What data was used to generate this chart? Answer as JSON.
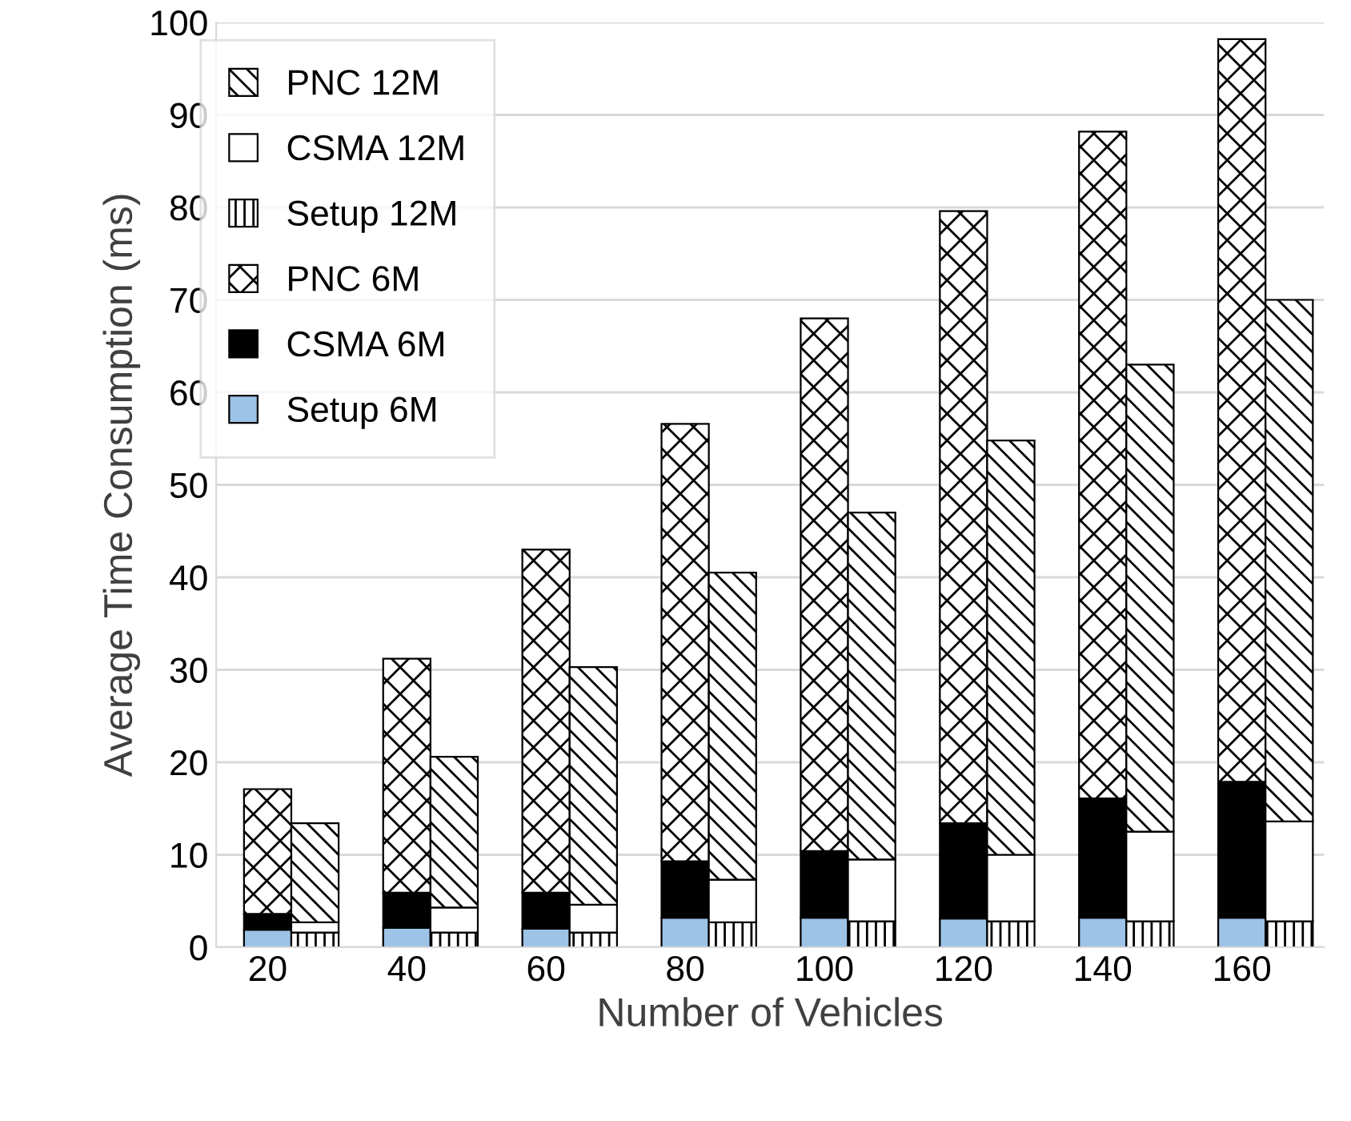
{
  "chart_data": {
    "type": "bar",
    "stacked": true,
    "xlabel": "Number of Vehicles",
    "ylabel": "Average Time Consumption (ms)",
    "categories": [
      "20",
      null,
      "40",
      null,
      "60",
      null,
      "80",
      null,
      "100",
      null,
      "120",
      null,
      "140",
      null,
      "160",
      null
    ],
    "ylim": [
      0,
      100
    ],
    "yticks": [
      0,
      10,
      20,
      30,
      40,
      50,
      60,
      70,
      80,
      90,
      100
    ],
    "grid": "y",
    "legend": "top left",
    "series": [
      {
        "name": "Setup 6M",
        "color": "#9dc3e6",
        "values": [
          1.9,
          null,
          2.1,
          null,
          2.0,
          null,
          3.2,
          null,
          3.2,
          null,
          3.1,
          null,
          3.2,
          null,
          3.2,
          null
        ]
      },
      {
        "name": "CSMA 6M",
        "color": "#000000",
        "values": [
          1.7,
          null,
          3.8,
          null,
          3.9,
          null,
          6.1,
          null,
          7.2,
          null,
          10.3,
          null,
          12.9,
          null,
          14.7,
          null
        ]
      },
      {
        "name": "PNC 6M",
        "color": "#000000",
        "values": [
          13.5,
          null,
          25.3,
          null,
          37.1,
          null,
          47.3,
          null,
          57.6,
          null,
          66.2,
          null,
          72.1,
          null,
          80.3,
          null
        ]
      },
      {
        "name": "Setup 12M",
        "color": "#000000",
        "values": [
          null,
          1.6,
          null,
          1.6,
          null,
          1.6,
          null,
          2.7,
          null,
          2.8,
          null,
          2.8,
          null,
          2.8,
          null,
          2.8
        ]
      },
      {
        "name": "CSMA 12M",
        "color": "#ffffff",
        "values": [
          null,
          1.1,
          null,
          2.7,
          null,
          3.0,
          null,
          4.6,
          null,
          6.7,
          null,
          7.2,
          null,
          9.7,
          null,
          10.8
        ]
      },
      {
        "name": "PNC 12M",
        "color": "#000000",
        "values": [
          null,
          10.7,
          null,
          16.3,
          null,
          25.7,
          null,
          33.2,
          null,
          37.5,
          null,
          44.8,
          null,
          50.5,
          null,
          56.4
        ]
      }
    ]
  }
}
